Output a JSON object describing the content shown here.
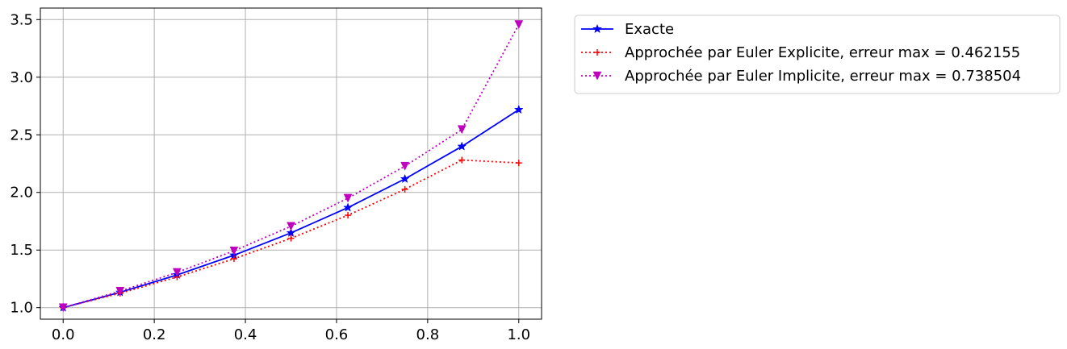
{
  "chart_data": {
    "type": "line",
    "title": "",
    "xlabel": "",
    "ylabel": "",
    "xlim": [
      -0.05,
      1.05
    ],
    "ylim": [
      0.9,
      3.6
    ],
    "xticks": [
      0.0,
      0.2,
      0.4,
      0.6,
      0.8,
      1.0
    ],
    "xtick_labels": [
      "0.0",
      "0.2",
      "0.4",
      "0.6",
      "0.8",
      "1.0"
    ],
    "yticks": [
      1.0,
      1.5,
      2.0,
      2.5,
      3.0,
      3.5
    ],
    "ytick_labels": [
      "1.0",
      "1.5",
      "2.0",
      "2.5",
      "3.0",
      "3.5"
    ],
    "grid": true,
    "legend_position": "outside-right-top",
    "x": [
      0.0,
      0.125,
      0.25,
      0.375,
      0.5,
      0.625,
      0.75,
      0.875,
      1.0
    ],
    "series": [
      {
        "name": "Exacte",
        "values": [
          1.0,
          1.133,
          1.284,
          1.455,
          1.649,
          1.868,
          2.117,
          2.399,
          2.718
        ],
        "color": "#0000ff",
        "line_style": "solid",
        "marker": "star"
      },
      {
        "name": "Approchée par Euler Explicite, erreur max = 0.462155",
        "values": [
          1.0,
          1.125,
          1.266,
          1.424,
          1.602,
          1.802,
          2.027,
          2.281,
          2.256
        ],
        "color": "#ff0000",
        "line_style": "dotted",
        "marker": "plus"
      },
      {
        "name": "Approchée par Euler Implicite, erreur max = 0.738504",
        "values": [
          1.0,
          1.143,
          1.306,
          1.493,
          1.706,
          1.95,
          2.228,
          2.546,
          3.457
        ],
        "color": "#bf00bf",
        "line_style": "dotted",
        "marker": "triangle-down"
      }
    ]
  }
}
